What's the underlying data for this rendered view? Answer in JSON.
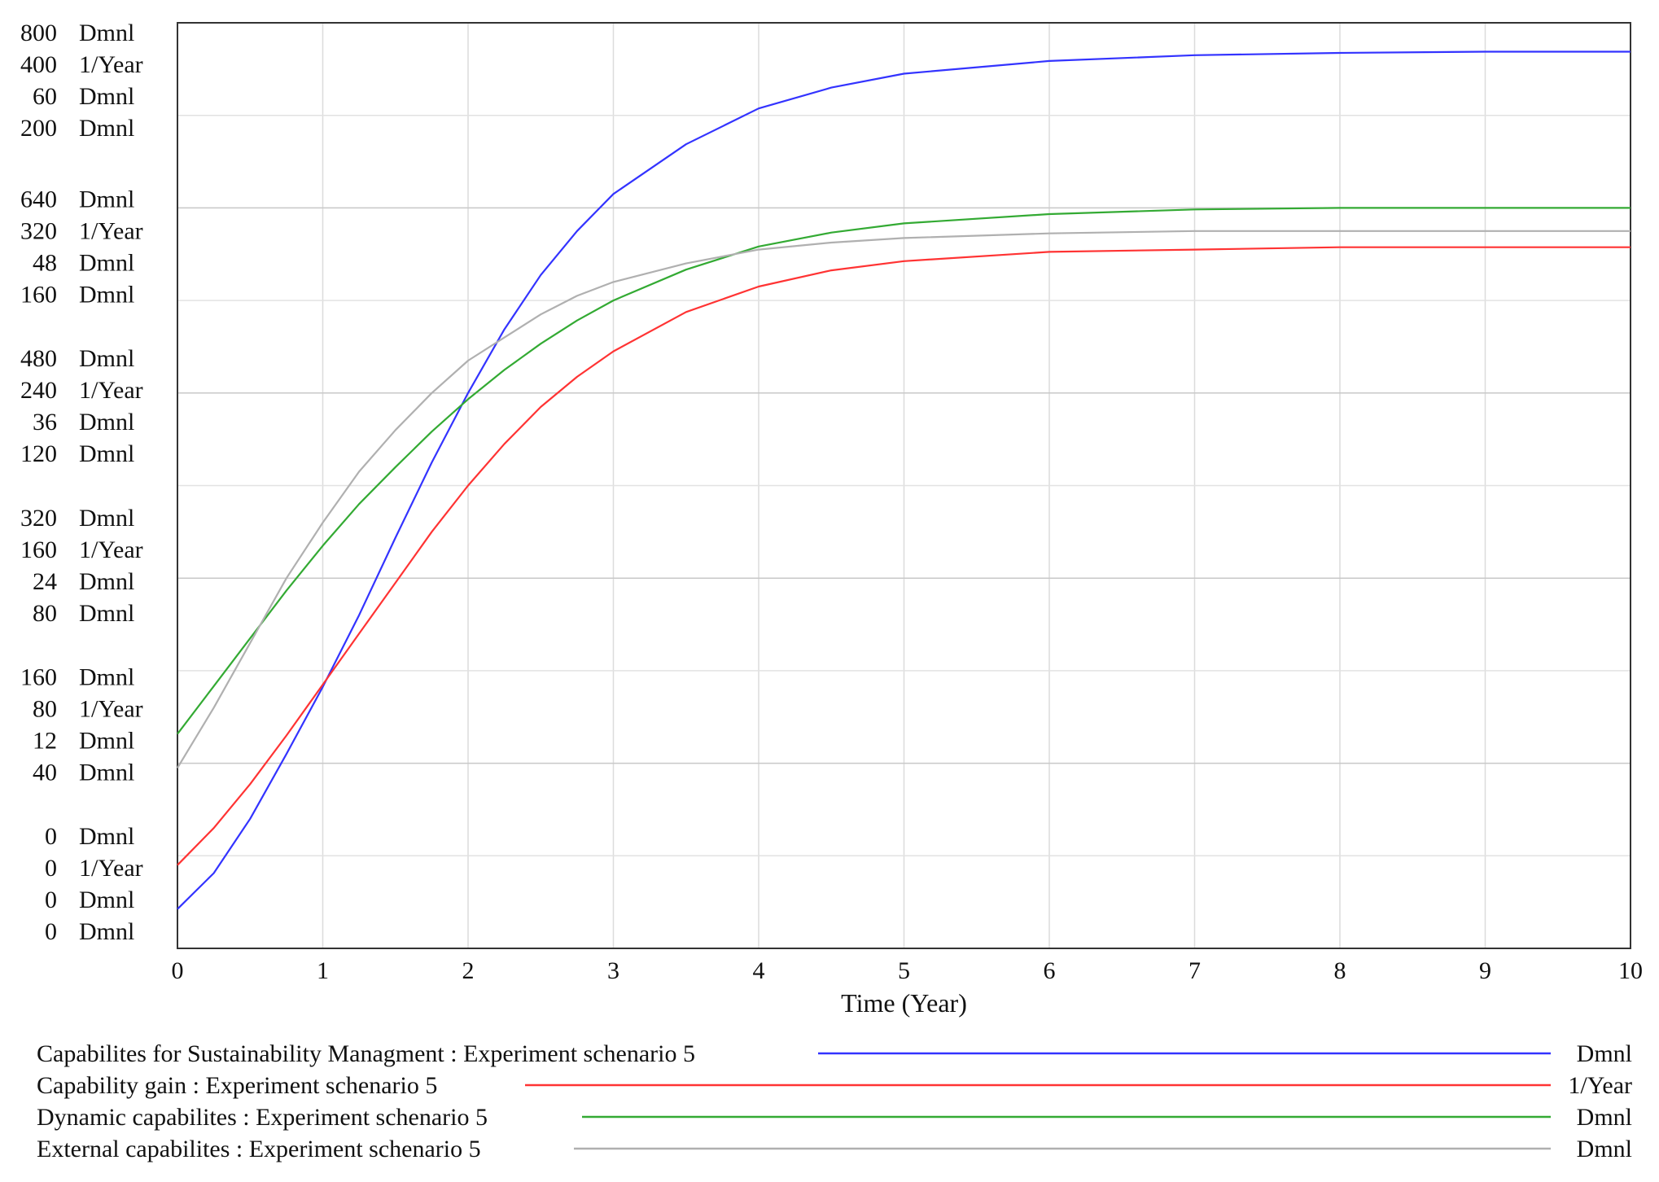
{
  "chart_data": {
    "type": "line",
    "title": "",
    "xlabel": "Time (Year)",
    "xlim": [
      0,
      10
    ],
    "x_ticks": [
      "0",
      "1",
      "2",
      "3",
      "4",
      "5",
      "6",
      "7",
      "8",
      "9",
      "10"
    ],
    "grid": true,
    "y_axes": [
      {
        "series": "Capabilites for Sustainability Managment",
        "unit": "Dmnl",
        "range": [
          0,
          800
        ],
        "ticks": [
          "0",
          "160",
          "320",
          "480",
          "640",
          "800"
        ]
      },
      {
        "series": "Capability gain",
        "unit": "1/Year",
        "range": [
          0,
          400
        ],
        "ticks": [
          "0",
          "80",
          "160",
          "240",
          "320",
          "400"
        ]
      },
      {
        "series": "Dynamic capabilites",
        "unit": "Dmnl",
        "range": [
          0,
          60
        ],
        "ticks": [
          "0",
          "12",
          "24",
          "36",
          "48",
          "60"
        ]
      },
      {
        "series": "External capabilites",
        "unit": "Dmnl",
        "range": [
          0,
          200
        ],
        "ticks": [
          "0",
          "40",
          "80",
          "120",
          "160",
          "200"
        ]
      }
    ],
    "x": [
      0,
      0.25,
      0.5,
      0.75,
      1,
      1.25,
      1.5,
      1.75,
      2,
      2.25,
      2.5,
      2.75,
      3,
      3.5,
      4,
      4.5,
      5,
      6,
      7,
      8,
      9,
      10
    ],
    "series": [
      {
        "name": "Capabilites for Sustainability Managment : Experiment schenario 5",
        "unit": "Dmnl",
        "color": "#3333ff",
        "values": [
          34,
          65,
          112,
          168,
          226,
          288,
          355,
          420,
          480,
          535,
          582,
          620,
          652,
          695,
          726,
          744,
          756,
          767,
          772,
          774,
          775,
          775
        ]
      },
      {
        "name": "Capability gain : Experiment schenario 5",
        "unit": "1/Year",
        "color": "#ff3333",
        "values": [
          36,
          52,
          71,
          92,
          114,
          136,
          158,
          180,
          200,
          218,
          234,
          247,
          258,
          275,
          286,
          293,
          297,
          301,
          302,
          303,
          303,
          303
        ]
      },
      {
        "name": "Dynamic capabilites : Experiment schenario 5",
        "unit": "Dmnl",
        "color": "#33aa33",
        "values": [
          13.9,
          17.0,
          20.1,
          23.2,
          26.1,
          28.8,
          31.2,
          33.5,
          35.6,
          37.5,
          39.2,
          40.7,
          42.0,
          44.0,
          45.5,
          46.4,
          47.0,
          47.6,
          47.9,
          48.0,
          48.0,
          48.0
        ]
      },
      {
        "name": "External capabilites : Experiment schenario 5",
        "unit": "Dmnl",
        "color": "#b0b0b0",
        "values": [
          39,
          52,
          66,
          80,
          92,
          103,
          112,
          120,
          127,
          132,
          137,
          141,
          144,
          148,
          151,
          152.5,
          153.5,
          154.5,
          155,
          155,
          155,
          155
        ]
      }
    ],
    "legend_position": "bottom"
  }
}
